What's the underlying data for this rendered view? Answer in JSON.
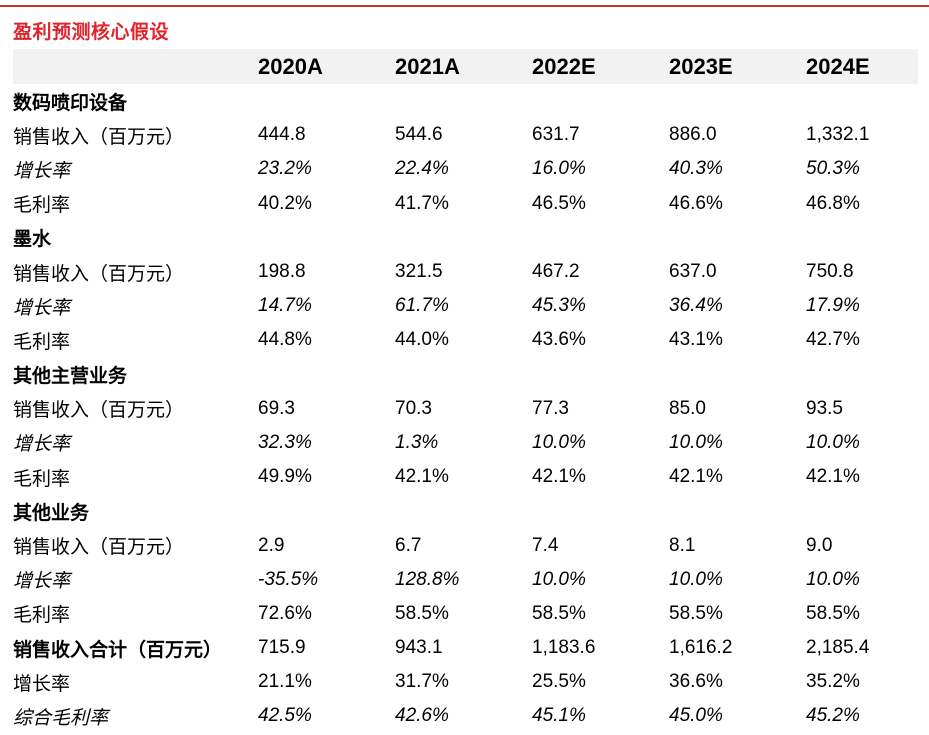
{
  "title": "盈利预测核心假设",
  "colors": {
    "title": "#e0242c",
    "rule": "#c0392b",
    "header_bg": "#f2f2f2"
  },
  "header": [
    "",
    "2020A",
    "2021A",
    "2022E",
    "2023E",
    "2024E"
  ],
  "rows": [
    {
      "type": "section",
      "cells": [
        "数码喷印设备",
        "",
        "",
        "",
        "",
        ""
      ]
    },
    {
      "type": "normal",
      "cells": [
        "销售收入（百万元）",
        "444.8",
        "544.6",
        "631.7",
        "886.0",
        "1,332.1"
      ]
    },
    {
      "type": "italic",
      "cells": [
        "增长率",
        "23.2%",
        "22.4%",
        "16.0%",
        "40.3%",
        "50.3%"
      ]
    },
    {
      "type": "normal",
      "cells": [
        "毛利率",
        "40.2%",
        "41.7%",
        "46.5%",
        "46.6%",
        "46.8%"
      ]
    },
    {
      "type": "section",
      "cells": [
        "墨水",
        "",
        "",
        "",
        "",
        ""
      ]
    },
    {
      "type": "normal",
      "cells": [
        "销售收入（百万元）",
        "198.8",
        "321.5",
        "467.2",
        "637.0",
        "750.8"
      ]
    },
    {
      "type": "italic",
      "cells": [
        "增长率",
        "14.7%",
        "61.7%",
        "45.3%",
        "36.4%",
        "17.9%"
      ]
    },
    {
      "type": "normal",
      "cells": [
        "毛利率",
        "44.8%",
        "44.0%",
        "43.6%",
        "43.1%",
        "42.7%"
      ]
    },
    {
      "type": "section",
      "cells": [
        "其他主营业务",
        "",
        "",
        "",
        "",
        ""
      ]
    },
    {
      "type": "normal",
      "cells": [
        "销售收入（百万元）",
        "69.3",
        "70.3",
        "77.3",
        "85.0",
        "93.5"
      ]
    },
    {
      "type": "italic",
      "cells": [
        "增长率",
        "32.3%",
        "1.3%",
        "10.0%",
        "10.0%",
        "10.0%"
      ]
    },
    {
      "type": "normal",
      "cells": [
        "毛利率",
        "49.9%",
        "42.1%",
        "42.1%",
        "42.1%",
        "42.1%"
      ]
    },
    {
      "type": "section",
      "cells": [
        "其他业务",
        "",
        "",
        "",
        "",
        ""
      ]
    },
    {
      "type": "normal",
      "cells": [
        "销售收入（百万元）",
        "2.9",
        "6.7",
        "7.4",
        "8.1",
        "9.0"
      ]
    },
    {
      "type": "italic",
      "cells": [
        "增长率",
        "-35.5%",
        "128.8%",
        "10.0%",
        "10.0%",
        "10.0%"
      ]
    },
    {
      "type": "normal",
      "cells": [
        "毛利率",
        "72.6%",
        "58.5%",
        "58.5%",
        "58.5%",
        "58.5%"
      ]
    },
    {
      "type": "total",
      "cells": [
        "销售收入合计（百万元）",
        "715.9",
        "943.1",
        "1,183.6",
        "1,616.2",
        "2,185.4"
      ]
    },
    {
      "type": "normal",
      "cells": [
        "增长率",
        "21.1%",
        "31.7%",
        "25.5%",
        "36.6%",
        "35.2%"
      ]
    },
    {
      "type": "italic",
      "cells": [
        "综合毛利率",
        "42.5%",
        "42.6%",
        "45.1%",
        "45.0%",
        "45.2%"
      ]
    }
  ]
}
